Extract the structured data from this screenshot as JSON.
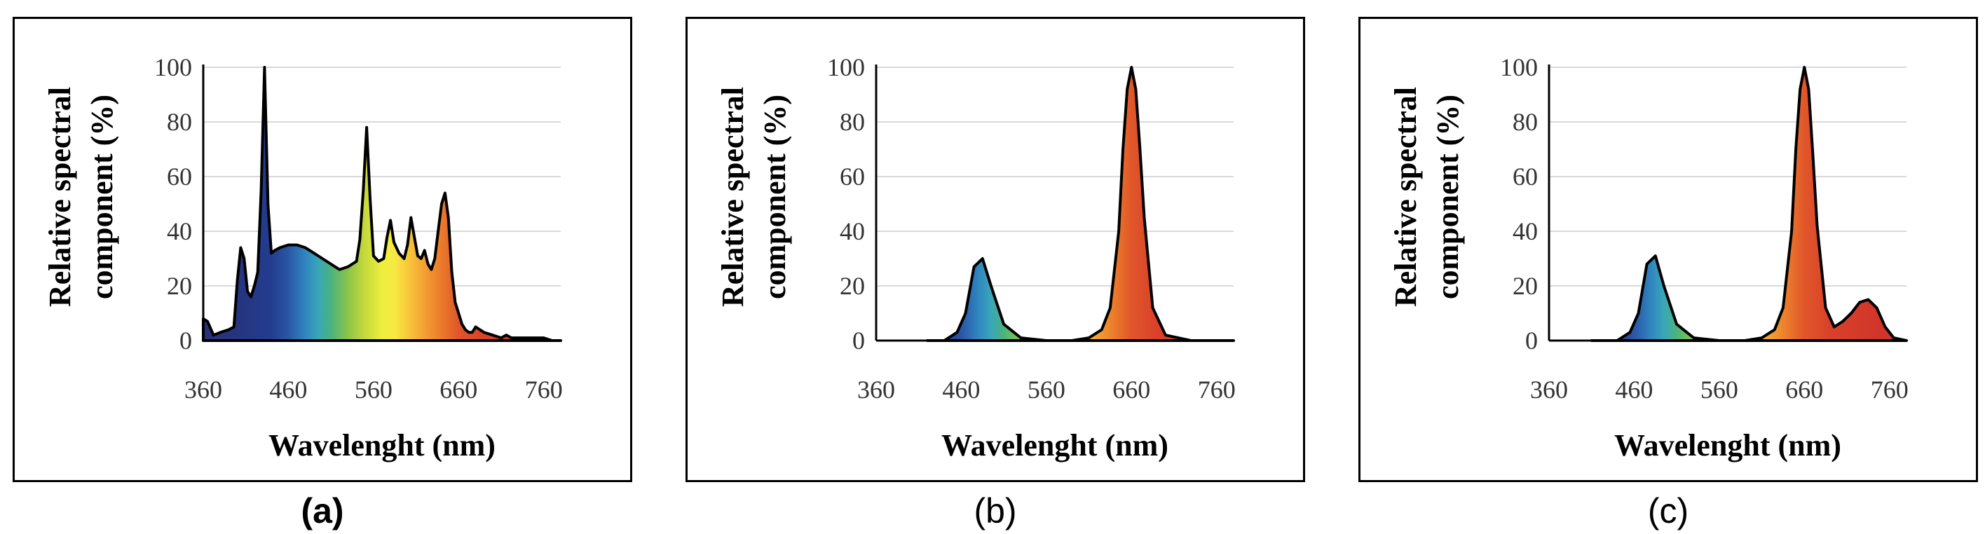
{
  "chart_data": [
    {
      "type": "area",
      "caption": "(a)",
      "xlabel": "Wavelenght (nm)",
      "ylabel_line1": "Relative spectral",
      "ylabel_line2": "component (%)",
      "xlim": [
        360,
        780
      ],
      "ylim": [
        0,
        100
      ],
      "xticks": [
        "360",
        "460",
        "560",
        "660",
        "760"
      ],
      "yticks": [
        "0",
        "20",
        "40",
        "60",
        "80",
        "100"
      ],
      "x": [
        360,
        365,
        372,
        380,
        390,
        396,
        400,
        404,
        408,
        412,
        416,
        420,
        424,
        428,
        432,
        436,
        440,
        444,
        450,
        460,
        470,
        480,
        490,
        500,
        510,
        520,
        530,
        540,
        544,
        548,
        552,
        556,
        560,
        566,
        572,
        576,
        580,
        584,
        590,
        596,
        600,
        604,
        608,
        612,
        616,
        620,
        624,
        628,
        632,
        636,
        640,
        644,
        648,
        652,
        656,
        660,
        664,
        668,
        672,
        676,
        680,
        690,
        700,
        710,
        716,
        722,
        730,
        740,
        750,
        756,
        760,
        770,
        780
      ],
      "values": [
        8,
        7,
        2,
        3,
        4,
        5,
        22,
        34,
        30,
        18,
        16,
        20,
        25,
        55,
        100,
        50,
        32,
        33,
        34,
        35,
        35,
        34,
        32,
        30,
        28,
        26,
        27,
        29,
        37,
        55,
        78,
        52,
        31,
        29,
        30,
        38,
        44,
        36,
        32,
        30,
        35,
        45,
        38,
        31,
        30,
        33,
        28,
        26,
        30,
        40,
        50,
        54,
        45,
        25,
        14,
        10,
        6,
        4,
        3,
        3,
        5,
        3,
        2,
        1,
        2,
        1,
        1,
        1,
        1,
        1,
        1,
        0,
        0
      ]
    },
    {
      "type": "area",
      "caption": "(b)",
      "xlabel": "Wavelenght (nm)",
      "ylabel_line1": "Relative spectral",
      "ylabel_line2": "component (%)",
      "xlim": [
        360,
        780
      ],
      "ylim": [
        0,
        100
      ],
      "xticks": [
        "360",
        "460",
        "560",
        "660",
        "760"
      ],
      "yticks": [
        "0",
        "20",
        "40",
        "60",
        "80",
        "100"
      ],
      "x": [
        420,
        440,
        455,
        465,
        475,
        485,
        495,
        510,
        530,
        560,
        590,
        610,
        625,
        635,
        645,
        650,
        655,
        660,
        665,
        670,
        675,
        685,
        700,
        730,
        780
      ],
      "values": [
        0,
        0,
        3,
        10,
        27,
        30,
        20,
        6,
        1,
        0,
        0,
        1,
        4,
        12,
        40,
        70,
        92,
        100,
        92,
        70,
        45,
        12,
        2,
        0,
        0
      ]
    },
    {
      "type": "area",
      "caption": "(c)",
      "xlabel": "Wavelenght (nm)",
      "ylabel_line1": "Relative spectral",
      "ylabel_line2": "component (%)",
      "xlim": [
        360,
        780
      ],
      "ylim": [
        0,
        100
      ],
      "xticks": [
        "360",
        "460",
        "560",
        "660",
        "760"
      ],
      "yticks": [
        "0",
        "20",
        "40",
        "60",
        "80",
        "100"
      ],
      "x": [
        410,
        440,
        455,
        465,
        475,
        485,
        495,
        510,
        530,
        560,
        590,
        610,
        625,
        635,
        645,
        650,
        655,
        660,
        665,
        670,
        675,
        685,
        695,
        705,
        715,
        725,
        735,
        745,
        755,
        765,
        780
      ],
      "values": [
        0,
        0,
        3,
        10,
        28,
        31,
        20,
        6,
        1,
        0,
        0,
        1,
        4,
        12,
        40,
        70,
        92,
        100,
        92,
        68,
        42,
        12,
        5,
        7,
        10,
        14,
        15,
        12,
        5,
        1,
        0
      ]
    }
  ]
}
